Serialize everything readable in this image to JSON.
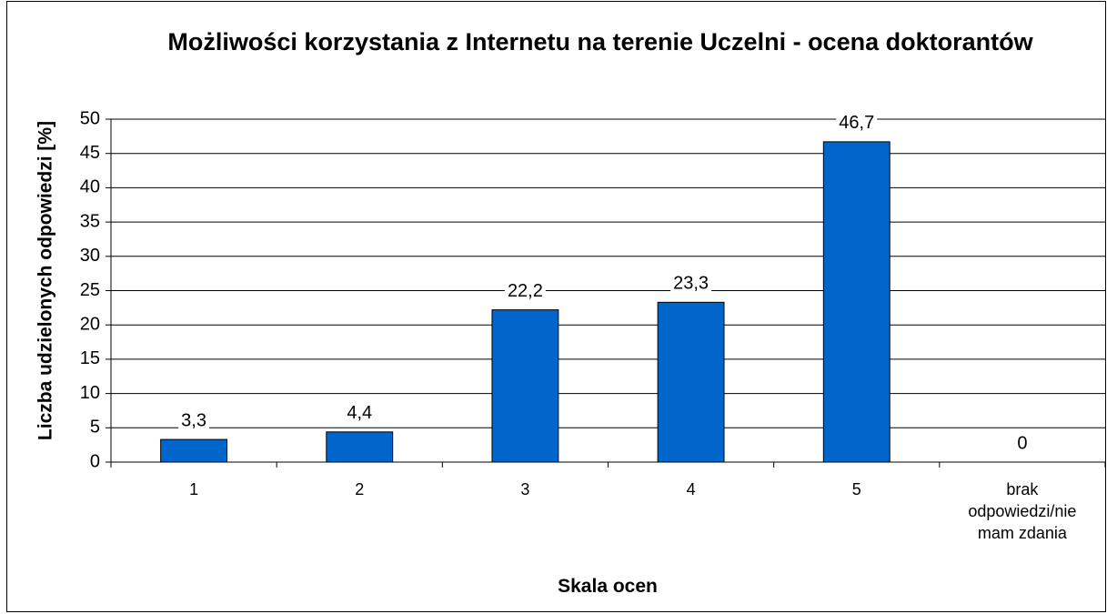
{
  "chart_data": {
    "type": "bar",
    "title": "Możliwości korzystania z Internetu na terenie Uczelni - ocena doktorantów",
    "x_label": "Skala ocen",
    "y_label": "Liczba udzielonych odpowiedzi [%]",
    "categories": [
      "1",
      "2",
      "3",
      "4",
      "5",
      "brak odpowiedzi/nie mam zdania"
    ],
    "values": [
      3.3,
      4.4,
      22.2,
      23.3,
      46.7,
      0
    ],
    "value_labels": [
      "3,3",
      "4,4",
      "22,2",
      "23,3",
      "46,7",
      "0"
    ],
    "color": "#0066cc",
    "ylim": [
      0,
      50
    ],
    "yticks": [
      0,
      5,
      10,
      15,
      20,
      25,
      30,
      35,
      40,
      45,
      50
    ],
    "grid": true
  }
}
